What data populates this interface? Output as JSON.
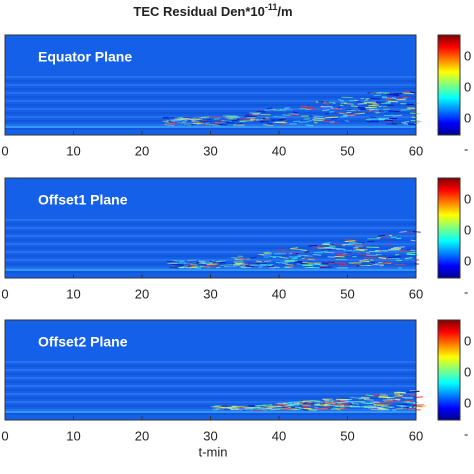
{
  "chart_data": [
    {
      "type": "heatmap",
      "title": {
        "text": "TEC Residual Den*10",
        "superscript": "-11",
        "suffix": "/m"
      },
      "label": "Equator Plane",
      "xlim": [
        0,
        60
      ],
      "xticks": [
        0,
        10,
        20,
        30,
        40,
        50,
        60
      ],
      "colorbar_ticks": [
        "0",
        "0",
        "0",
        "-"
      ]
    },
    {
      "type": "heatmap",
      "label": "Offset1 Plane",
      "xlim": [
        0,
        60
      ],
      "xticks": [
        0,
        10,
        20,
        30,
        40,
        50,
        60
      ],
      "colorbar_ticks": [
        "0",
        "0",
        "0",
        "-"
      ]
    },
    {
      "type": "heatmap",
      "label": "Offset2 Plane",
      "xlim": [
        0,
        60
      ],
      "xticks": [
        0,
        10,
        20,
        30,
        40,
        50,
        60
      ],
      "colorbar_ticks": [
        "0",
        "0",
        "0",
        "-"
      ],
      "x_label": "t-min"
    }
  ]
}
